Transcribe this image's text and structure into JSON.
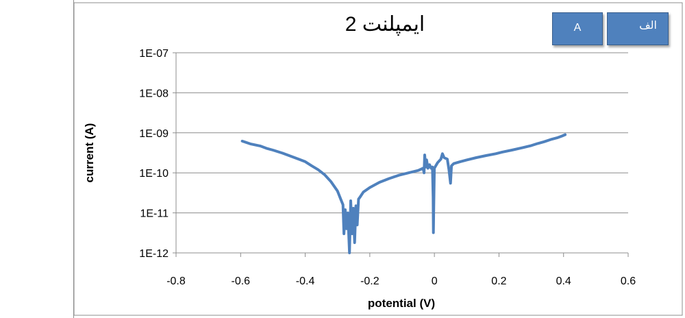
{
  "chart_data": {
    "type": "line",
    "title": "ایمپلنت 2",
    "xlabel": "potential (V)",
    "ylabel": "current (A)",
    "xlim": [
      -0.8,
      0.6
    ],
    "ylim": [
      1e-12,
      1e-07
    ],
    "yscale": "log",
    "grid": {
      "horizontal": true,
      "vertical": false
    },
    "legend": "none",
    "x_ticks": [
      "-0.8",
      "-0.6",
      "-0.4",
      "-0.2",
      "0",
      "0.2",
      "0.4",
      "0.6"
    ],
    "y_ticks": [
      "1E-07",
      "1E-08",
      "1E-09",
      "1E-10",
      "1E-11",
      "1E-12"
    ],
    "series": [
      {
        "color": "#4f81bd",
        "points": [
          [
            -0.595,
            6.2e-10
          ],
          [
            -0.57,
            5.3e-10
          ],
          [
            -0.54,
            4.7e-10
          ],
          [
            -0.52,
            4.1e-10
          ],
          [
            -0.5,
            3.7e-10
          ],
          [
            -0.47,
            3.1e-10
          ],
          [
            -0.45,
            2.7e-10
          ],
          [
            -0.42,
            2.2e-10
          ],
          [
            -0.4,
            1.9e-10
          ],
          [
            -0.38,
            1.5e-10
          ],
          [
            -0.36,
            1.2e-10
          ],
          [
            -0.34,
            9e-11
          ],
          [
            -0.32,
            6e-11
          ],
          [
            -0.3,
            3.5e-11
          ],
          [
            -0.29,
            2.2e-11
          ],
          [
            -0.283,
            1.6e-11
          ],
          [
            -0.28,
            3e-12
          ],
          [
            -0.276,
            1.2e-11
          ],
          [
            -0.272,
            4e-12
          ],
          [
            -0.268,
            1e-11
          ],
          [
            -0.263,
            1e-12
          ],
          [
            -0.259,
            2e-11
          ],
          [
            -0.255,
            3e-12
          ],
          [
            -0.251,
            1.3e-11
          ],
          [
            -0.247,
            1.8e-12
          ],
          [
            -0.243,
            1.5e-11
          ],
          [
            -0.239,
            5e-12
          ],
          [
            -0.235,
            2.2e-11
          ],
          [
            -0.23,
            2.5e-11
          ],
          [
            -0.22,
            3.3e-11
          ],
          [
            -0.2,
            4.3e-11
          ],
          [
            -0.17,
            5.8e-11
          ],
          [
            -0.14,
            7.2e-11
          ],
          [
            -0.11,
            8.7e-11
          ],
          [
            -0.08,
            1e-10
          ],
          [
            -0.05,
            1.15e-10
          ],
          [
            -0.035,
            1.3e-10
          ],
          [
            -0.032,
            1e-10
          ],
          [
            -0.03,
            2.8e-10
          ],
          [
            -0.027,
            1.4e-10
          ],
          [
            -0.024,
            2.1e-10
          ],
          [
            -0.02,
            1.3e-10
          ],
          [
            -0.015,
            1.6e-10
          ],
          [
            -0.01,
            1.3e-10
          ],
          [
            -0.006,
            1.4e-10
          ],
          [
            -0.004,
            2.5e-11
          ],
          [
            -0.003,
            3.2e-12
          ],
          [
            -0.002,
            1.3e-11
          ],
          [
            0.0,
            1.3e-10
          ],
          [
            0.01,
            1.8e-10
          ],
          [
            0.02,
            2.2e-10
          ],
          [
            0.025,
            3e-10
          ],
          [
            0.03,
            2.4e-10
          ],
          [
            0.04,
            2.2e-10
          ],
          [
            0.045,
            1.2e-10
          ],
          [
            0.05,
            5.5e-11
          ],
          [
            0.053,
            1.5e-10
          ],
          [
            0.06,
            1.7e-10
          ],
          [
            0.08,
            1.9e-10
          ],
          [
            0.1,
            2.1e-10
          ],
          [
            0.13,
            2.4e-10
          ],
          [
            0.16,
            2.7e-10
          ],
          [
            0.19,
            3e-10
          ],
          [
            0.21,
            3.3e-10
          ],
          [
            0.24,
            3.7e-10
          ],
          [
            0.27,
            4.2e-10
          ],
          [
            0.3,
            4.8e-10
          ],
          [
            0.32,
            5.4e-10
          ],
          [
            0.34,
            6e-10
          ],
          [
            0.36,
            6.8e-10
          ],
          [
            0.38,
            7.5e-10
          ],
          [
            0.395,
            8.3e-10
          ],
          [
            0.405,
            9e-10
          ]
        ]
      }
    ]
  },
  "tags": {
    "a": "A",
    "alef": "الف"
  }
}
